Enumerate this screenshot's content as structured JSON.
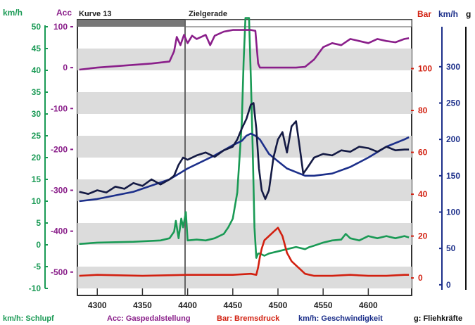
{
  "chart_data": {
    "type": "line",
    "sections": [
      {
        "label": "Kurve 13",
        "from": 4280,
        "to": 4400
      },
      {
        "label": "Zielgerade",
        "from": 4400,
        "to": 4650
      }
    ],
    "x_ticks": [
      4300,
      4350,
      4400,
      4450,
      4500,
      4550,
      4600
    ],
    "xlim": [
      4278,
      4648
    ],
    "series_top_labels": {
      "schlupf_unit": "km/h",
      "acc_unit": "Acc",
      "bar_unit": "Bar",
      "speed_unit": "km/h",
      "g_unit": "g"
    },
    "axes": {
      "schlupf": {
        "color": "#1a9a55",
        "ticks": [
          50,
          45,
          40,
          35,
          30,
          25,
          20,
          15,
          10,
          5,
          0,
          -5,
          -10
        ],
        "lim": [
          -10,
          50
        ]
      },
      "acc": {
        "color": "#8a1f8a",
        "ticks": [
          100,
          0,
          -100,
          -200,
          -300,
          -400,
          -500
        ],
        "lim": [
          -540,
          100
        ]
      },
      "bar": {
        "color": "#d22010",
        "ticks": [
          100,
          80,
          60,
          40,
          20,
          0
        ],
        "lim": [
          -5,
          120
        ]
      },
      "speed": {
        "color": "#1c2f8a",
        "ticks": [
          300,
          250,
          200,
          150,
          100,
          50,
          0
        ],
        "lim": [
          -5,
          355
        ]
      }
    },
    "legend": [
      {
        "text": "km/h: Schlupf",
        "color": "#1a9a55"
      },
      {
        "text": "Acc: Gaspedalstellung",
        "color": "#8a1f8a"
      },
      {
        "text": "Bar: Bremsdruck",
        "color": "#d22010"
      },
      {
        "text": "km/h: Geschwindigkeit",
        "color": "#1c2f8a"
      },
      {
        "text": "g: Fliehkräfte",
        "color": "#111111"
      }
    ],
    "series": [
      {
        "key": "schlupf",
        "axis": "schlupf",
        "color": "#1a9a55",
        "x": [
          4280,
          4300,
          4340,
          4370,
          4380,
          4385,
          4387,
          4390,
          4393,
          4395,
          4398,
          4400,
          4410,
          4420,
          4430,
          4440,
          4445,
          4450,
          4455,
          4460,
          4462,
          4464,
          4468,
          4470,
          4472,
          4474,
          4476,
          4478,
          4480,
          4485,
          4490,
          4500,
          4510,
          4520,
          4530,
          4535,
          4540,
          4550,
          4560,
          4570,
          4575,
          4580,
          4590,
          4600,
          4610,
          4620,
          4630,
          4640,
          4645
        ],
        "y": [
          0.2,
          0.5,
          0.7,
          1.0,
          1.5,
          3.0,
          5.5,
          1.5,
          6.0,
          4.0,
          7.5,
          1.0,
          1.2,
          1.0,
          1.5,
          2.5,
          4.0,
          6.0,
          12,
          28,
          42,
          52,
          52,
          38,
          22,
          4,
          -3,
          -2,
          -2,
          -2.5,
          -2,
          -1.5,
          -1,
          -0.5,
          -1,
          -0.5,
          -0.2,
          0.5,
          1.0,
          1.2,
          2.5,
          1.5,
          1.0,
          2.0,
          1.5,
          2.0,
          1.5,
          2.0,
          1.7
        ]
      },
      {
        "key": "gaspedal",
        "axis": "acc",
        "color": "#8a1f8a",
        "x": [
          4280,
          4300,
          4330,
          4360,
          4380,
          4385,
          4388,
          4392,
          4396,
          4400,
          4405,
          4410,
          4420,
          4425,
          4430,
          4440,
          4445,
          4450,
          4460,
          4470,
          4475,
          4478,
          4480,
          4500,
          4520,
          4530,
          4540,
          4550,
          4560,
          4570,
          4580,
          4590,
          4600,
          4610,
          4620,
          4630,
          4640,
          4645
        ],
        "y": [
          -5,
          0,
          5,
          10,
          15,
          40,
          75,
          55,
          80,
          60,
          78,
          70,
          80,
          55,
          78,
          88,
          90,
          92,
          92,
          92,
          90,
          10,
          0,
          0,
          0,
          2,
          20,
          50,
          60,
          55,
          70,
          65,
          60,
          70,
          65,
          62,
          70,
          72
        ]
      },
      {
        "key": "bremsdruck",
        "axis": "bar",
        "color": "#d22010",
        "x": [
          4280,
          4300,
          4350,
          4400,
          4450,
          4470,
          4476,
          4478,
          4480,
          4482,
          4485,
          4490,
          4495,
          4500,
          4505,
          4510,
          4515,
          4520,
          4525,
          4530,
          4540,
          4560,
          4580,
          4600,
          4620,
          4640,
          4645
        ],
        "y": [
          1,
          1.5,
          1,
          1.5,
          1.5,
          2,
          1.5,
          5,
          10,
          14,
          18,
          20,
          22,
          24,
          20,
          12,
          8,
          6,
          4,
          2,
          1,
          1,
          1.5,
          1,
          1,
          1.5,
          1.5
        ]
      },
      {
        "key": "geschwindigkeit",
        "axis": "speed",
        "color": "#1c2f8a",
        "x": [
          4280,
          4300,
          4340,
          4380,
          4400,
          4430,
          4450,
          4460,
          4465,
          4470,
          4475,
          4480,
          4490,
          4500,
          4510,
          4520,
          4530,
          4540,
          4560,
          4580,
          4600,
          4620,
          4640,
          4645
        ],
        "y": [
          115,
          118,
          128,
          145,
          160,
          178,
          192,
          198,
          205,
          208,
          205,
          200,
          180,
          170,
          160,
          155,
          150,
          150,
          153,
          162,
          175,
          190,
          200,
          203
        ]
      },
      {
        "key": "fliehkraefte",
        "axis": "speed",
        "color": "#141a44",
        "x": [
          4280,
          4290,
          4300,
          4310,
          4320,
          4330,
          4340,
          4350,
          4360,
          4370,
          4380,
          4385,
          4390,
          4395,
          4400,
          4410,
          4420,
          4430,
          4440,
          4450,
          4455,
          4460,
          4465,
          4470,
          4473,
          4476,
          4479,
          4482,
          4486,
          4490,
          4495,
          4500,
          4505,
          4510,
          4515,
          4520,
          4524,
          4528,
          4532,
          4540,
          4550,
          4560,
          4570,
          4580,
          4590,
          4600,
          4610,
          4620,
          4630,
          4640,
          4645
        ],
        "y": [
          128,
          125,
          130,
          127,
          135,
          132,
          140,
          136,
          145,
          138,
          145,
          150,
          165,
          175,
          172,
          178,
          182,
          176,
          185,
          190,
          200,
          215,
          228,
          248,
          250,
          215,
          160,
          130,
          118,
          130,
          175,
          200,
          210,
          182,
          218,
          225,
          190,
          153,
          160,
          175,
          180,
          178,
          185,
          183,
          190,
          188,
          183,
          190,
          185,
          186,
          186
        ]
      }
    ]
  }
}
